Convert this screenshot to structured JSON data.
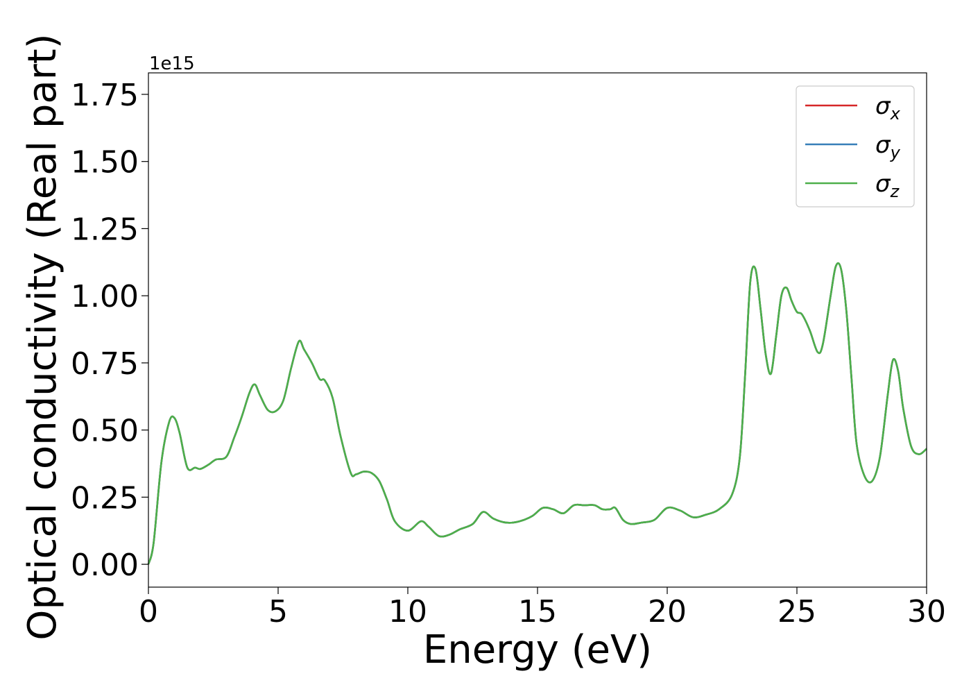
{
  "chart_data": {
    "type": "line",
    "title": "",
    "xlabel": "Energy (eV)",
    "ylabel": "Optical conductivity (Real part)",
    "y_offset_text": "1e15",
    "xlim": [
      0,
      30
    ],
    "ylim": [
      -0.085,
      1.83
    ],
    "y_scale": 1000000000000000.0,
    "grid": false,
    "legend_position": "top-right",
    "xticks": [
      0,
      5,
      10,
      15,
      20,
      25,
      30
    ],
    "xtick_labels": [
      "0",
      "5",
      "10",
      "15",
      "20",
      "25",
      "30"
    ],
    "yticks": [
      0.0,
      0.25,
      0.5,
      0.75,
      1.0,
      1.25,
      1.5,
      1.75
    ],
    "ytick_labels": [
      "0.00",
      "0.25",
      "0.50",
      "0.75",
      "1.00",
      "1.25",
      "1.50",
      "1.75"
    ],
    "series": [
      {
        "name": "σx",
        "symbol": "σ",
        "subscript": "x",
        "color": "#d62728"
      },
      {
        "name": "σy",
        "symbol": "σ",
        "subscript": "y",
        "color": "#377eb8"
      },
      {
        "name": "σz",
        "symbol": "σ",
        "subscript": "z",
        "color": "#4daf4a"
      }
    ],
    "x": [
      0,
      0.2,
      0.5,
      0.8,
      1.0,
      1.2,
      1.5,
      1.8,
      2.0,
      2.3,
      2.6,
      3.0,
      3.3,
      3.6,
      3.9,
      4.1,
      4.3,
      4.6,
      4.9,
      5.2,
      5.5,
      5.8,
      6.0,
      6.3,
      6.6,
      6.8,
      7.1,
      7.4,
      7.8,
      8.0,
      8.3,
      8.6,
      8.9,
      9.2,
      9.5,
      10.0,
      10.5,
      10.8,
      11.2,
      11.6,
      12.0,
      12.5,
      12.9,
      13.3,
      13.8,
      14.3,
      14.8,
      15.2,
      15.6,
      16.0,
      16.4,
      16.8,
      17.2,
      17.5,
      17.8,
      18.0,
      18.3,
      18.6,
      19.0,
      19.5,
      20.0,
      20.5,
      21.0,
      21.5,
      22.0,
      22.5,
      22.8,
      23.0,
      23.2,
      23.4,
      23.6,
      23.8,
      24.0,
      24.2,
      24.4,
      24.6,
      24.8,
      25.0,
      25.2,
      25.5,
      25.8,
      26.0,
      26.3,
      26.5,
      26.7,
      26.9,
      27.1,
      27.3,
      27.6,
      27.9,
      28.2,
      28.5,
      28.7,
      28.9,
      29.1,
      29.4,
      29.7,
      30.0
    ],
    "values": [
      0.0,
      0.08,
      0.38,
      0.53,
      0.545,
      0.49,
      0.36,
      0.36,
      0.355,
      0.37,
      0.39,
      0.4,
      0.47,
      0.55,
      0.64,
      0.67,
      0.63,
      0.575,
      0.57,
      0.61,
      0.73,
      0.83,
      0.8,
      0.75,
      0.69,
      0.685,
      0.62,
      0.48,
      0.34,
      0.335,
      0.345,
      0.34,
      0.31,
      0.24,
      0.16,
      0.125,
      0.16,
      0.14,
      0.105,
      0.11,
      0.13,
      0.15,
      0.195,
      0.17,
      0.155,
      0.16,
      0.18,
      0.21,
      0.205,
      0.19,
      0.22,
      0.22,
      0.22,
      0.205,
      0.205,
      0.21,
      0.165,
      0.15,
      0.155,
      0.165,
      0.21,
      0.2,
      0.175,
      0.185,
      0.205,
      0.26,
      0.4,
      0.7,
      1.05,
      1.1,
      0.95,
      0.78,
      0.71,
      0.85,
      1.0,
      1.03,
      0.98,
      0.94,
      0.93,
      0.87,
      0.79,
      0.82,
      1.0,
      1.11,
      1.1,
      0.95,
      0.7,
      0.45,
      0.33,
      0.31,
      0.4,
      0.63,
      0.76,
      0.72,
      0.58,
      0.44,
      0.41,
      0.43
    ]
  }
}
